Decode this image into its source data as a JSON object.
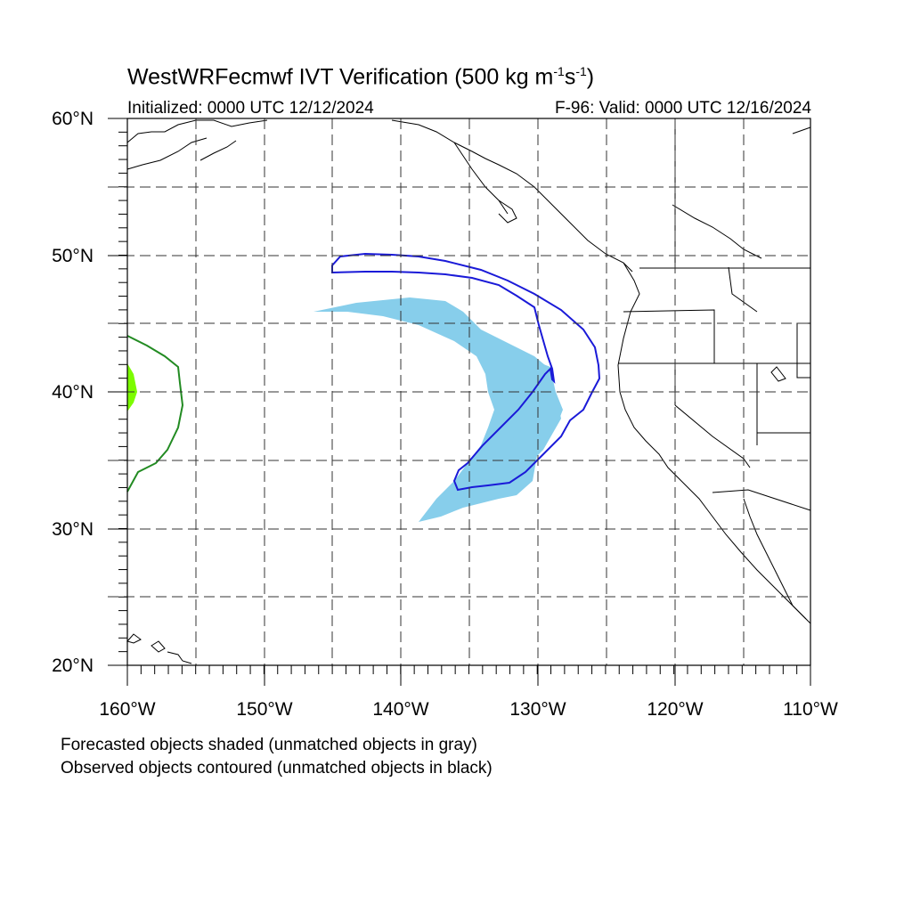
{
  "title": {
    "prefix": "WestWRFecmwf IVT Verification (500 kg m",
    "exp1": "-1",
    "mid": "s",
    "exp2": "-1",
    "suffix": ")"
  },
  "initialized": "Initialized: 0000 UTC 12/12/2024",
  "valid": "F-96: Valid: 0000 UTC 12/16/2024",
  "y_labels": [
    "60°N",
    "50°N",
    "40°N",
    "30°N",
    "20°N"
  ],
  "x_labels": [
    "160°W",
    "150°W",
    "140°W",
    "130°W",
    "120°W",
    "110°W"
  ],
  "legend": {
    "forecast": "Forecasted objects shaded (unmatched objects in gray)",
    "observed": "Observed objects contoured (unmatched objects in black)"
  },
  "colors": {
    "forecast_object": "#87ceeb",
    "observed_object": "#1a1ad8",
    "edge_forecast": "#7cfc00",
    "edge_observed": "#228b22",
    "grid": "#000000"
  },
  "map": {
    "lon_range": [
      -160,
      -110
    ],
    "lat_range": [
      20,
      60
    ],
    "gridlines": "dashed every 5 degrees"
  }
}
